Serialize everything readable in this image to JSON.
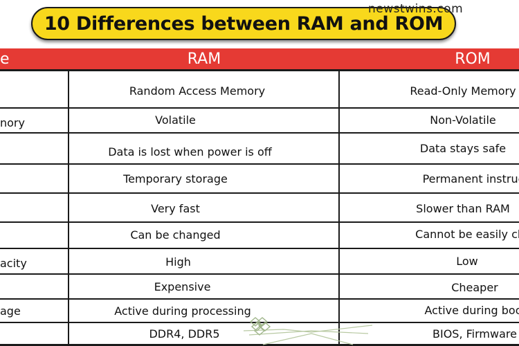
{
  "title": "10 Differences between RAM and ROM",
  "watermark": "newstwins.com",
  "table": {
    "headers": [
      "e",
      "RAM",
      "ROM"
    ],
    "rows": [
      [
        "",
        "Random Access Memory",
        "Read-Only Memory"
      ],
      [
        "nory",
        "Volatile",
        "Non-Volatile"
      ],
      [
        "",
        "Data is lost when power is off",
        "Data stays safe"
      ],
      [
        "",
        "Temporary storage",
        "Permanent instruc"
      ],
      [
        "",
        "Very fast",
        "Slower than RAM"
      ],
      [
        "",
        "Can be changed",
        "Cannot be easily cha"
      ],
      [
        "acity",
        "High",
        "Low"
      ],
      [
        "",
        "Expensive",
        "Cheaper"
      ],
      [
        "age",
        "Active during processing",
        "Active during boo"
      ],
      [
        "",
        "DDR4, DDR5",
        "BIOS, Firmware"
      ]
    ]
  },
  "colors": {
    "header_bg": "#e53a34",
    "title_bg": "#f8d81c",
    "header_text": "#ffffff",
    "grid_line": "#1a1a1a"
  }
}
